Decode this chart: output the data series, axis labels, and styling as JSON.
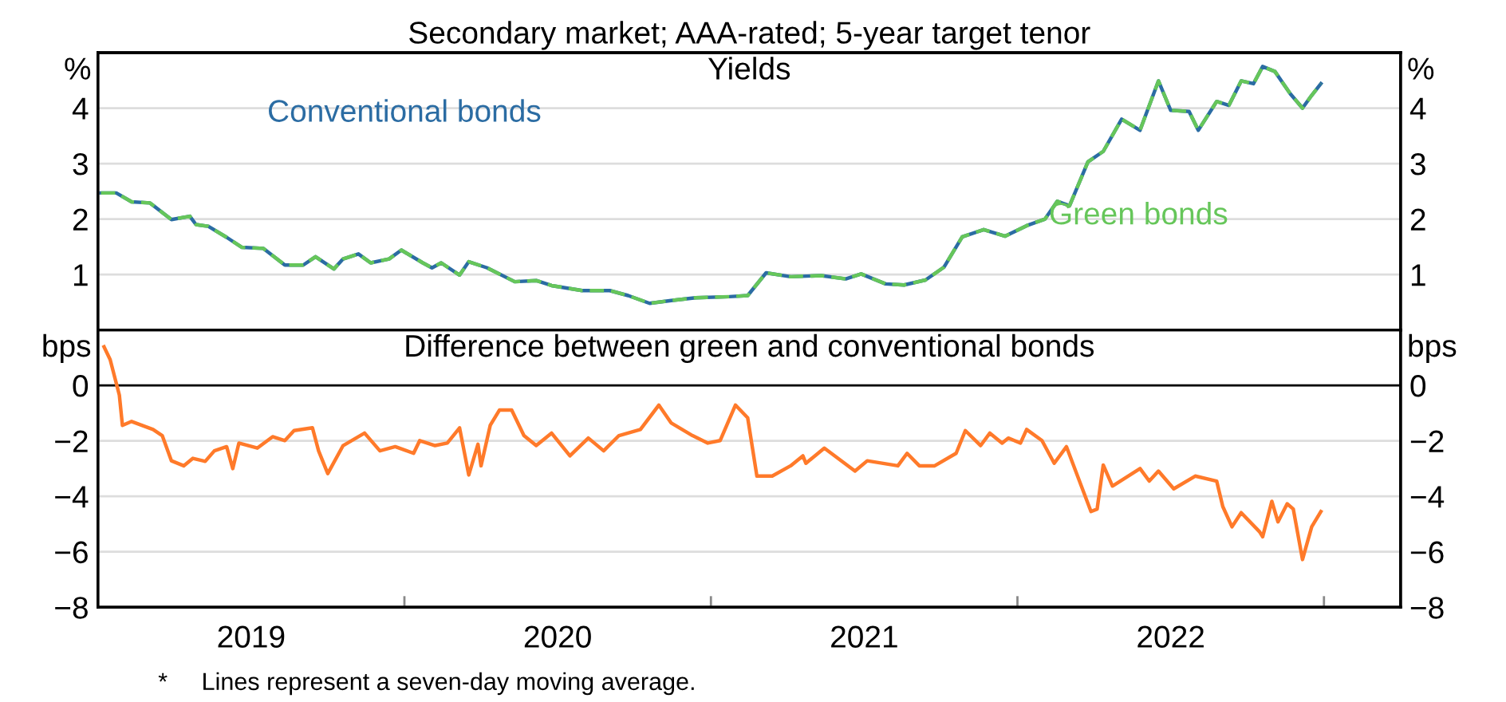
{
  "chart_data": [
    {
      "type": "line",
      "title": "Secondary market; AAA-rated; 5-year target tenor",
      "subtitle": "Yields",
      "ylabel": "%",
      "y2label": "%",
      "xlim": [
        2019.0,
        2023.25
      ],
      "ylim": [
        0,
        5
      ],
      "yticks": [
        1,
        2,
        3,
        4
      ],
      "y2lim": [
        0,
        5
      ],
      "y2ticks": [
        1,
        2,
        3,
        4
      ],
      "grid": "y",
      "legend": false,
      "tick_labels": "y",
      "series": [
        {
          "name": "Conventional bonds",
          "color": "#2b6ca3",
          "line_style": "solid",
          "x": [
            2019.01,
            2019.06,
            2019.11,
            2019.17,
            2019.24,
            2019.3,
            2019.32,
            2019.36,
            2019.42,
            2019.47,
            2019.54,
            2019.61,
            2019.67,
            2019.71,
            2019.77,
            2019.8,
            2019.85,
            2019.89,
            2019.95,
            2019.99,
            2020.06,
            2020.09,
            2020.12,
            2020.18,
            2020.21,
            2020.27,
            2020.36,
            2020.43,
            2020.48,
            2020.58,
            2020.67,
            2020.73,
            2020.8,
            2020.87,
            2020.95,
            2021.06,
            2021.12,
            2021.18,
            2021.26,
            2021.36,
            2021.44,
            2021.49,
            2021.57,
            2021.63,
            2021.7,
            2021.76,
            2021.82,
            2021.89,
            2021.96,
            2022.03,
            2022.09,
            2022.13,
            2022.17,
            2022.23,
            2022.28,
            2022.34,
            2022.4,
            2022.46,
            2022.5,
            2022.56,
            2022.59,
            2022.65,
            2022.69,
            2022.73,
            2022.77,
            2022.8,
            2022.84,
            2022.89,
            2022.93,
            2022.96,
            2022.99
          ],
          "values": [
            2.47,
            2.47,
            2.31,
            2.29,
            1.99,
            2.05,
            1.9,
            1.87,
            1.67,
            1.49,
            1.47,
            1.17,
            1.17,
            1.32,
            1.1,
            1.28,
            1.37,
            1.21,
            1.28,
            1.44,
            1.21,
            1.12,
            1.21,
            0.99,
            1.23,
            1.12,
            0.87,
            0.89,
            0.8,
            0.71,
            0.71,
            0.62,
            0.48,
            0.53,
            0.58,
            0.6,
            0.62,
            1.03,
            0.96,
            0.98,
            0.92,
            1.01,
            0.83,
            0.81,
            0.9,
            1.13,
            1.68,
            1.81,
            1.69,
            1.88,
            2.0,
            2.32,
            2.24,
            3.03,
            3.22,
            3.8,
            3.6,
            4.49,
            3.96,
            3.94,
            3.6,
            4.12,
            4.05,
            4.49,
            4.44,
            4.75,
            4.66,
            4.26,
            4.0,
            4.23,
            4.44
          ]
        },
        {
          "name": "Green bonds",
          "color": "#66c65a",
          "line_style": "dashed",
          "x": [
            2019.01,
            2019.06,
            2019.11,
            2019.17,
            2019.24,
            2019.3,
            2019.32,
            2019.36,
            2019.42,
            2019.47,
            2019.54,
            2019.61,
            2019.67,
            2019.71,
            2019.77,
            2019.8,
            2019.85,
            2019.89,
            2019.95,
            2019.99,
            2020.06,
            2020.09,
            2020.12,
            2020.18,
            2020.21,
            2020.27,
            2020.36,
            2020.43,
            2020.48,
            2020.58,
            2020.67,
            2020.73,
            2020.8,
            2020.87,
            2020.95,
            2021.06,
            2021.12,
            2021.18,
            2021.26,
            2021.36,
            2021.44,
            2021.49,
            2021.57,
            2021.63,
            2021.7,
            2021.76,
            2021.82,
            2021.89,
            2021.96,
            2022.03,
            2022.09,
            2022.13,
            2022.17,
            2022.23,
            2022.28,
            2022.34,
            2022.4,
            2022.46,
            2022.5,
            2022.56,
            2022.59,
            2022.65,
            2022.69,
            2022.73,
            2022.77,
            2022.8,
            2022.84,
            2022.89,
            2022.93,
            2022.96,
            2022.99
          ],
          "values": [
            2.47,
            2.47,
            2.31,
            2.29,
            1.99,
            2.05,
            1.9,
            1.87,
            1.67,
            1.49,
            1.47,
            1.17,
            1.17,
            1.32,
            1.1,
            1.28,
            1.37,
            1.21,
            1.28,
            1.44,
            1.21,
            1.12,
            1.21,
            0.99,
            1.23,
            1.12,
            0.87,
            0.89,
            0.8,
            0.71,
            0.71,
            0.62,
            0.48,
            0.53,
            0.58,
            0.6,
            0.62,
            1.03,
            0.96,
            0.98,
            0.92,
            1.01,
            0.83,
            0.81,
            0.9,
            1.13,
            1.68,
            1.81,
            1.69,
            1.88,
            2.0,
            2.32,
            2.24,
            3.03,
            3.22,
            3.8,
            3.6,
            4.49,
            3.96,
            3.94,
            3.6,
            4.12,
            4.05,
            4.49,
            4.44,
            4.75,
            4.66,
            4.26,
            4.0,
            4.23,
            4.44
          ]
        }
      ]
    },
    {
      "type": "line",
      "title": "Difference between green and conventional bonds",
      "ylabel": "bps",
      "y2label": "bps",
      "xlim": [
        2019.0,
        2023.25
      ],
      "xticks": [
        {
          "value": 2019.5,
          "label": "2019"
        },
        {
          "value": 2020.0,
          "label": null
        },
        {
          "value": 2020.5,
          "label": "2020"
        },
        {
          "value": 2021.0,
          "label": null
        },
        {
          "value": 2021.5,
          "label": "2021"
        },
        {
          "value": 2022.0,
          "label": null
        },
        {
          "value": 2022.5,
          "label": "2022"
        },
        {
          "value": 2023.0,
          "label": null
        }
      ],
      "ylim": [
        -8,
        2
      ],
      "yticks": [
        -8,
        -6,
        -4,
        -2,
        0
      ],
      "y2lim": [
        -8,
        2
      ],
      "y2ticks": [
        -8,
        -6,
        -4,
        -2,
        0
      ],
      "grid": "y",
      "legend": false,
      "ref_lines": [
        {
          "axis": "y",
          "value": 0,
          "color": "#000000"
        }
      ],
      "annotations": [
        "*     Lines represent a seven-day moving average."
      ],
      "series": [
        {
          "color": "#ff7a2a",
          "x": [
            2019.02,
            2019.04,
            2019.07,
            2019.08,
            2019.11,
            2019.18,
            2019.21,
            2019.24,
            2019.28,
            2019.31,
            2019.35,
            2019.38,
            2019.42,
            2019.44,
            2019.46,
            2019.52,
            2019.57,
            2019.61,
            2019.64,
            2019.7,
            2019.72,
            2019.75,
            2019.8,
            2019.87,
            2019.92,
            2019.97,
            2020.03,
            2020.05,
            2020.1,
            2020.14,
            2020.18,
            2020.21,
            2020.24,
            2020.25,
            2020.28,
            2020.31,
            2020.35,
            2020.39,
            2020.43,
            2020.48,
            2020.54,
            2020.6,
            2020.65,
            2020.7,
            2020.77,
            2020.83,
            2020.87,
            2020.94,
            2020.99,
            2021.03,
            2021.08,
            2021.12,
            2021.15,
            2021.2,
            2021.26,
            2021.3,
            2021.31,
            2021.37,
            2021.47,
            2021.51,
            2021.61,
            2021.64,
            2021.68,
            2021.73,
            2021.8,
            2021.83,
            2021.88,
            2021.91,
            2021.95,
            2021.97,
            2022.01,
            2022.03,
            2022.08,
            2022.12,
            2022.16,
            2022.19,
            2022.24,
            2022.26,
            2022.28,
            2022.31,
            2022.4,
            2022.43,
            2022.46,
            2022.51,
            2022.58,
            2022.65,
            2022.67,
            2022.7,
            2022.73,
            2022.79,
            2022.8,
            2022.83,
            2022.85,
            2022.88,
            2022.9,
            2022.93,
            2022.96,
            2022.99
          ],
          "values": [
            1.39,
            0.93,
            -0.35,
            -1.44,
            -1.3,
            -1.59,
            -1.81,
            -2.72,
            -2.9,
            -2.63,
            -2.74,
            -2.36,
            -2.21,
            -3.0,
            -2.08,
            -2.26,
            -1.85,
            -1.99,
            -1.63,
            -1.53,
            -2.36,
            -3.18,
            -2.17,
            -1.72,
            -2.36,
            -2.21,
            -2.45,
            -1.99,
            -2.17,
            -2.08,
            -1.53,
            -3.23,
            -2.12,
            -2.9,
            -1.44,
            -0.89,
            -0.89,
            -1.81,
            -2.17,
            -1.72,
            -2.54,
            -1.9,
            -2.36,
            -1.81,
            -1.59,
            -0.71,
            -1.35,
            -1.81,
            -2.08,
            -1.99,
            -0.71,
            -1.17,
            -3.27,
            -3.27,
            -2.9,
            -2.54,
            -2.81,
            -2.26,
            -3.09,
            -2.72,
            -2.9,
            -2.45,
            -2.9,
            -2.9,
            -2.45,
            -1.63,
            -2.17,
            -1.72,
            -2.08,
            -1.9,
            -2.08,
            -1.59,
            -1.99,
            -2.81,
            -2.21,
            -3.09,
            -4.55,
            -4.46,
            -2.87,
            -3.63,
            -3.0,
            -3.45,
            -3.09,
            -3.73,
            -3.27,
            -3.45,
            -4.37,
            -5.1,
            -4.59,
            -5.28,
            -5.46,
            -4.18,
            -4.92,
            -4.27,
            -4.46,
            -6.28,
            -5.1,
            -4.55
          ]
        }
      ]
    }
  ]
}
